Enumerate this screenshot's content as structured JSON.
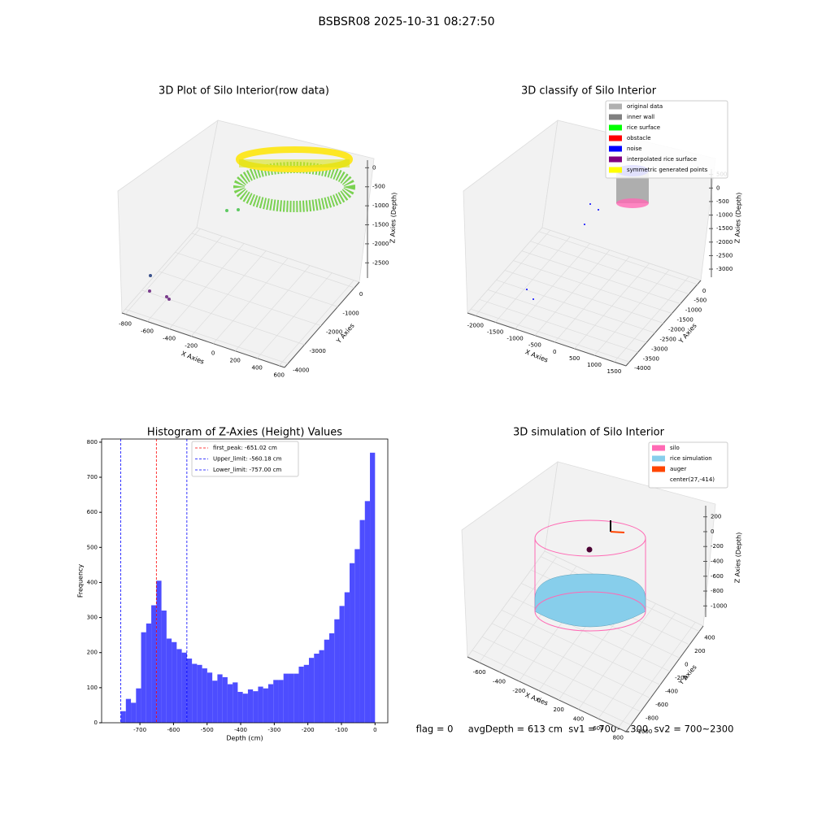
{
  "figure_title": "BSBSR08 2025-10-31 08:27:50",
  "footer": "flag = 0     avgDepth = 613 cm  sv1 = 700~2300  sv2 = 700~2300",
  "chart_data": [
    {
      "type": "scatter3d",
      "title": "3D Plot of Silo Interior(row data)",
      "x_label": "X Axies",
      "y_label": "Y Axies",
      "z_label": "Z Axies (Depth)",
      "xlim": [
        -830,
        650
      ],
      "xticks": [
        -800,
        -600,
        -400,
        -200,
        0,
        200,
        400,
        600
      ],
      "ylim": [
        -4200,
        300
      ],
      "yticks": [
        0,
        -1000,
        -2000,
        -3000,
        -4000
      ],
      "zlim": [
        -2900,
        200
      ],
      "zticks": [
        0,
        -500,
        -1000,
        -1500,
        -2000,
        -2500
      ]
    },
    {
      "type": "scatter3d",
      "title": "3D classify of Silo Interior",
      "x_label": "X Axies",
      "y_label": "Y Axies",
      "z_label": "Z Axies (Depth)",
      "xlim": [
        -2200,
        1800
      ],
      "xticks": [
        -2000,
        -1500,
        -1000,
        -500,
        0,
        500,
        1000,
        1500
      ],
      "ylim": [
        -4200,
        200
      ],
      "yticks": [
        0,
        -500,
        -1000,
        -1500,
        -2000,
        -2500,
        -3000,
        -3500,
        -4000
      ],
      "zlim": [
        -3300,
        700
      ],
      "zticks": [
        500,
        0,
        -500,
        -1000,
        -1500,
        -2000,
        -2500,
        -3000
      ],
      "legend": [
        {
          "name": "original data",
          "color": "#b0b0b0"
        },
        {
          "name": "inner wall",
          "color": "#808080"
        },
        {
          "name": "rice surface",
          "color": "#00ff00"
        },
        {
          "name": "obstacle",
          "color": "#ff0000"
        },
        {
          "name": "noise",
          "color": "#0000ff"
        },
        {
          "name": "interpolated rice surface",
          "color": "#800080"
        },
        {
          "name": "symmetric generated points",
          "color": "#ffff00"
        }
      ]
    },
    {
      "type": "histogram",
      "title": "Histogram of Z-Axies (Height) Values",
      "x_label": "Depth (cm)",
      "y_label": "Frequency",
      "color": "#4d4dff",
      "bins": [
        -757,
        -741.86,
        -726.72,
        -711.58,
        -696.44,
        -681.3,
        -666.16,
        -651.02,
        -635.88,
        -620.74,
        -605.6,
        -590.46,
        -575.32,
        -560.18,
        -545.04,
        -529.9,
        -514.76,
        -499.62,
        -484.48,
        -469.34,
        -454.2,
        -439.06,
        -423.92,
        -408.78,
        -393.64,
        -378.5,
        -363.36,
        -348.22,
        -333.08,
        -317.94,
        -302.8,
        -287.66,
        -272.52,
        -257.38,
        -242.24,
        -227.1,
        -211.96,
        -196.82,
        -181.68,
        -166.54,
        -151.4,
        -136.26,
        -121.12,
        -105.98,
        -90.84,
        -75.7,
        -60.56,
        -45.42,
        -30.28,
        -15.14,
        0
      ],
      "counts": [
        33,
        68,
        57,
        98,
        258,
        283,
        335,
        405,
        320,
        240,
        230,
        210,
        200,
        183,
        168,
        165,
        155,
        143,
        120,
        138,
        130,
        110,
        115,
        88,
        83,
        95,
        90,
        103,
        98,
        110,
        122,
        122,
        140,
        140,
        140,
        160,
        165,
        185,
        197,
        207,
        237,
        255,
        295,
        333,
        372,
        455,
        495,
        578,
        632,
        770
      ],
      "xlim": [
        -814,
        38
      ],
      "xticks": [
        -700,
        -600,
        -500,
        -400,
        -300,
        -200,
        -100,
        0
      ],
      "ylim": [
        0,
        809
      ],
      "yticks": [
        0,
        100,
        200,
        300,
        400,
        500,
        600,
        700,
        800
      ],
      "vlines": [
        {
          "value": -651.02,
          "label": "first_peak: -651.02 cm",
          "color": "#ff0000"
        },
        {
          "value": -560.18,
          "label": "Upper_limit: -560.18 cm",
          "color": "#0000ff"
        },
        {
          "value": -757.0,
          "label": "Lower_limit: -757.00 cm",
          "color": "#0000ff"
        }
      ]
    },
    {
      "type": "simulation3d",
      "title": "3D simulation of Silo Interior",
      "x_label": "X Axies",
      "y_label": "Y Axies",
      "z_label": "Z Axies (Depth)",
      "xlim": [
        -720,
        880
      ],
      "xticks": [
        -600,
        -400,
        -200,
        0,
        200,
        400,
        600,
        800
      ],
      "ylim": [
        -1100,
        480
      ],
      "yticks": [
        400,
        200,
        0,
        -200,
        -400,
        -600,
        -800,
        -1000
      ],
      "zlim": [
        -1150,
        350
      ],
      "zticks": [
        200,
        0,
        -200,
        -400,
        -600,
        -800,
        -1000
      ],
      "legend": [
        {
          "name": "silo",
          "color": "#ff69b4"
        },
        {
          "name": "rice simulation",
          "color": "#87ceeb"
        },
        {
          "name": "auger",
          "color": "#ff4500"
        },
        {
          "name": "center(27,-414)",
          "color": "#ffffff"
        }
      ]
    }
  ]
}
